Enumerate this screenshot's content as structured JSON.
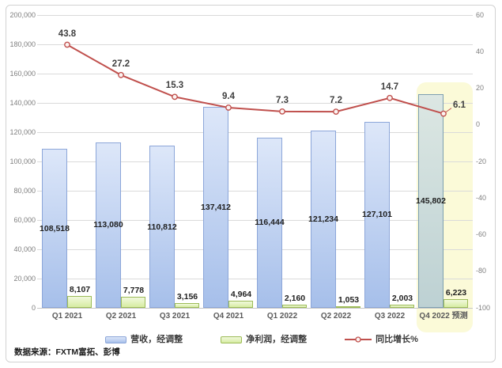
{
  "chart_data": {
    "type": "combo-bar-line",
    "categories": [
      "Q1 2021",
      "Q2 2021",
      "Q3 2021",
      "Q4 2021",
      "Q1 2022",
      "Q2 2022",
      "Q3 2022",
      "Q4 2022 预测"
    ],
    "series": [
      {
        "name": "营收，经调整",
        "type": "bar",
        "axis": "left",
        "values": [
          108518,
          113080,
          110812,
          137412,
          116444,
          121234,
          127101,
          145802
        ]
      },
      {
        "name": "净利润，经调整",
        "type": "bar",
        "axis": "left",
        "values": [
          8107,
          7778,
          3156,
          4964,
          2160,
          1053,
          2003,
          6223
        ]
      },
      {
        "name": "同比增长%",
        "type": "line",
        "axis": "right",
        "values": [
          43.8,
          27.2,
          15.3,
          9.4,
          7.3,
          7.2,
          14.7,
          6.1
        ]
      }
    ],
    "left_axis": {
      "min": 0,
      "max": 200000,
      "step": 20000
    },
    "right_axis": {
      "min": -100,
      "max": 60,
      "step": 20
    },
    "forecast_index": 7,
    "grid": true,
    "legend_position": "bottom",
    "title": ""
  },
  "source_note": "数据来源：FXTM富拓、彭博",
  "colors": {
    "line": "#c0504d",
    "line_marker_fill": "#fbf3f1",
    "bar_revenue_top": "#dde7f9",
    "bar_revenue_bottom": "#a6bfea",
    "bar_revenue_border": "#8ca6d9",
    "bar_profit_top": "#f1f9dd",
    "bar_profit_bottom": "#d6eca2",
    "bar_profit_border": "#9cbb57",
    "forecast_bar_top": "#dce7e3",
    "forecast_bar_bottom": "#bdd1d3",
    "forecast_bar_border": "#7d9fb0",
    "highlight_band": "#fbfad8",
    "grid_line": "#dadada",
    "axis_line": "#c6c6c6",
    "axis_text": "#7f7f7f",
    "category_text": "#5a5a5a",
    "data_label_text": "#1f1f1f",
    "line_label_text": "#3f3f3f"
  }
}
